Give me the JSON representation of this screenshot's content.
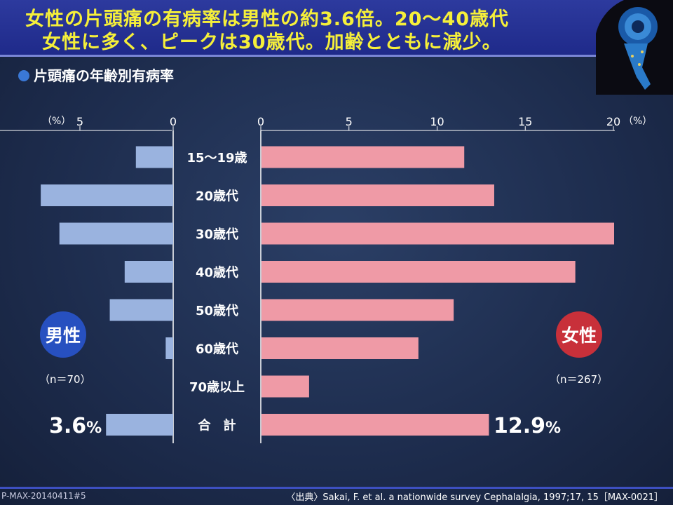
{
  "header": {
    "line1": "女性の片頭痛の有病率は男性の約3.6倍。20～40歳代",
    "line2": "女性に多く、ピークは30歳代。加齢とともに減少。"
  },
  "subtitle": "片頭痛の年齢別有病率",
  "chart_data": {
    "type": "bar",
    "title": "片頭痛の年齢別有病率",
    "categories": [
      "15～19歳",
      "20歳代",
      "30歳代",
      "40歳代",
      "50歳代",
      "60歳代",
      "70歳以上",
      "合　計"
    ],
    "male_axis": {
      "ticks": [
        "5",
        "0"
      ],
      "unit": "（%）",
      "range": [
        0,
        7
      ]
    },
    "female_axis": {
      "ticks": [
        "0",
        "5",
        "10",
        "15",
        "20"
      ],
      "unit": "（%）",
      "range": [
        0,
        20
      ]
    },
    "series": [
      {
        "name": "男性",
        "values": [
          2.0,
          7.1,
          6.1,
          2.6,
          3.4,
          0.4,
          0,
          3.6
        ],
        "color": "#9ab3df"
      },
      {
        "name": "女性",
        "values": [
          11.5,
          13.2,
          20.0,
          17.8,
          10.9,
          8.9,
          2.7,
          12.9
        ],
        "color": "#ef9aa6"
      }
    ]
  },
  "male": {
    "label": "男性",
    "n": "（n＝70）",
    "total": "3.6",
    "total_unit": "%"
  },
  "female": {
    "label": "女性",
    "n": "（n＝267）",
    "total": "12.9",
    "total_unit": "%"
  },
  "footer": {
    "code": "P-MAX-20140411#5",
    "source": "〈出典〉Sakai, F. et al. a nationwide survey Cephalalgia, 1997;17, 15［MAX-0021］"
  },
  "colors": {
    "header_bg": "#1f2a8a",
    "title_text": "#f5ef3a",
    "male_bar": "#9ab3df",
    "female_bar": "#ef9aa6"
  }
}
